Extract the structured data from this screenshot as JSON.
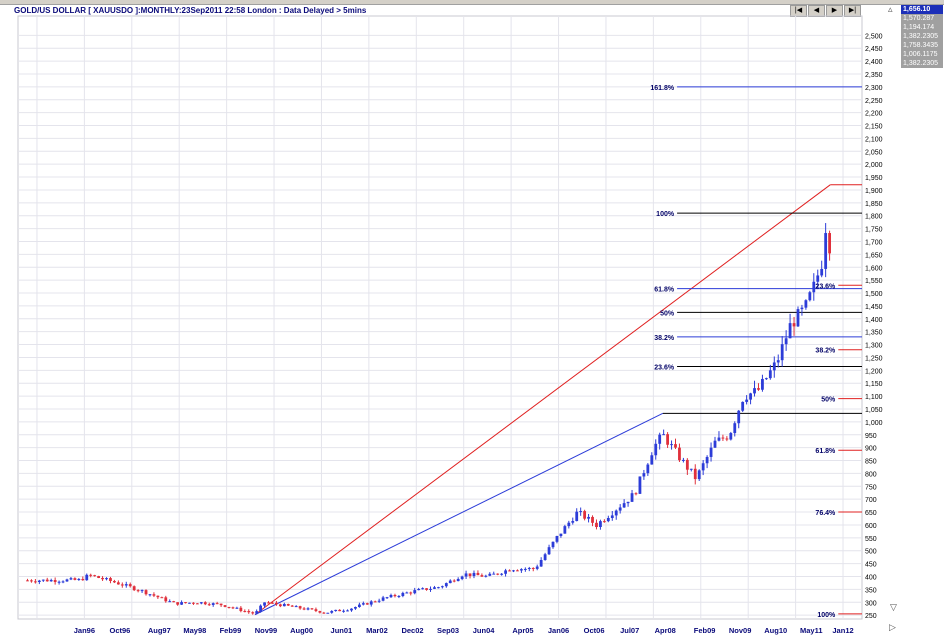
{
  "header": {
    "title": "GOLD/US DOLLAR [ XAUUSDO ]:MONTHLY:23Sep2011 22:58 London : Data Delayed > 5mins"
  },
  "nav": {
    "first": "|◀",
    "prev": "◀",
    "next": "▶",
    "last": "▶|"
  },
  "value_panel": [
    "1,656.10",
    "1,570.287",
    "1,194.174",
    "1,382.2305",
    "1,758.3435",
    "1,006.1175",
    "1,382.2305"
  ],
  "colors": {
    "up": "#2c3cd8",
    "down": "#e0303c",
    "blue_line": "#2c3cd8",
    "red_line": "#e02020",
    "grid": "#e4e4ec",
    "fib_label": "#000066"
  },
  "chart_data": {
    "type": "candlestick",
    "ylim": [
      235,
      2575
    ],
    "xlim": [
      1994.6,
      2012.4
    ],
    "y_ticks": [
      250,
      300,
      350,
      400,
      450,
      500,
      550,
      600,
      650,
      700,
      750,
      800,
      850,
      900,
      950,
      1000,
      1050,
      1100,
      1150,
      1200,
      1250,
      1300,
      1350,
      1400,
      1450,
      1500,
      1550,
      1600,
      1650,
      1700,
      1750,
      1800,
      1850,
      1900,
      1950,
      2000,
      2050,
      2100,
      2150,
      2200,
      2250,
      2300,
      2350,
      2400,
      2450,
      2500
    ],
    "x_labels": [
      "Jan96",
      "Oct96",
      "Aug97",
      "May98",
      "Feb99",
      "Nov99",
      "Aug00",
      "Jun01",
      "Mar02",
      "Dec02",
      "Sep03",
      "Jun04",
      "Apr05",
      "Jan06",
      "Oct06",
      "Jul07",
      "Apr08",
      "Feb09",
      "Nov09",
      "Aug10",
      "May11",
      "Jan12"
    ],
    "x_label_years": [
      1996.0,
      1996.75,
      1997.58,
      1998.33,
      1999.08,
      1999.83,
      2000.58,
      2001.42,
      2002.17,
      2002.92,
      2003.67,
      2004.42,
      2005.25,
      2006.0,
      2006.75,
      2007.5,
      2008.25,
      2009.08,
      2009.83,
      2010.58,
      2011.33,
      2012.0
    ],
    "anchors": [
      [
        1994.8,
        385
      ],
      [
        1995.9,
        386
      ],
      [
        1996.1,
        405
      ],
      [
        1996.6,
        380
      ],
      [
        1997.2,
        345
      ],
      [
        1997.9,
        295
      ],
      [
        1998.4,
        300
      ],
      [
        1998.9,
        290
      ],
      [
        1999.6,
        255
      ],
      [
        1999.8,
        300
      ],
      [
        2000.3,
        285
      ],
      [
        2001.1,
        260
      ],
      [
        2001.6,
        275
      ],
      [
        2002.3,
        315
      ],
      [
        2003.0,
        345
      ],
      [
        2003.5,
        360
      ],
      [
        2004.0,
        410
      ],
      [
        2004.5,
        400
      ],
      [
        2005.0,
        430
      ],
      [
        2005.5,
        430
      ],
      [
        2006.0,
        560
      ],
      [
        2006.4,
        650
      ],
      [
        2006.8,
        600
      ],
      [
        2007.2,
        660
      ],
      [
        2007.6,
        720
      ],
      [
        2008.0,
        900
      ],
      [
        2008.2,
        950
      ],
      [
        2008.6,
        850
      ],
      [
        2008.9,
        780
      ],
      [
        2009.3,
        920
      ],
      [
        2009.6,
        950
      ],
      [
        2009.9,
        1100
      ],
      [
        2010.2,
        1120
      ],
      [
        2010.6,
        1230
      ],
      [
        2010.9,
        1380
      ],
      [
        2011.2,
        1440
      ],
      [
        2011.4,
        1530
      ],
      [
        2011.55,
        1620
      ],
      [
        2011.67,
        1820
      ],
      [
        2011.73,
        1650
      ]
    ],
    "fib_lines": [
      {
        "label": "161.8%",
        "side": "left",
        "y": 2300,
        "color": "#2c3cd8",
        "x1": 2008.5,
        "x2": 2012.4
      },
      {
        "label": "100%",
        "side": "left",
        "y": 1810,
        "color": "#000000",
        "x1": 2008.5,
        "x2": 2012.4
      },
      {
        "label": "61.8%",
        "side": "left",
        "y": 1517,
        "color": "#2c3cd8",
        "x1": 2008.5,
        "x2": 2012.4
      },
      {
        "label": "50%",
        "side": "left",
        "y": 1425,
        "color": "#000000",
        "x1": 2008.5,
        "x2": 2012.4
      },
      {
        "label": "38.2%",
        "side": "left",
        "y": 1330,
        "color": "#2c3cd8",
        "x1": 2008.5,
        "x2": 2012.4
      },
      {
        "label": "23.6%",
        "side": "left",
        "y": 1215,
        "color": "#000000",
        "x1": 2008.5,
        "x2": 2012.4
      },
      {
        "label": "23.6%",
        "side": "right",
        "y": 1530,
        "color": "#e02020",
        "x1": 2011.9,
        "x2": 2012.4
      },
      {
        "label": "38.2%",
        "side": "right",
        "y": 1280,
        "color": "#e02020",
        "x1": 2011.9,
        "x2": 2012.4
      },
      {
        "label": "50%",
        "side": "right",
        "y": 1090,
        "color": "#e02020",
        "x1": 2011.9,
        "x2": 2012.4
      },
      {
        "label": "61.8%",
        "side": "right",
        "y": 890,
        "color": "#e02020",
        "x1": 2011.9,
        "x2": 2012.4
      },
      {
        "label": "76.4%",
        "side": "right",
        "y": 650,
        "color": "#e02020",
        "x1": 2011.9,
        "x2": 2012.4
      },
      {
        "label": "100%",
        "side": "right",
        "y": 255,
        "color": "#e02020",
        "x1": 2011.9,
        "x2": 2012.4
      }
    ],
    "trend_lines": [
      {
        "color": "#e02020",
        "x1": 1999.6,
        "y1": 252,
        "x2": 2011.73,
        "y2": 1920
      },
      {
        "color": "#2c3cd8",
        "x1": 1999.6,
        "y1": 252,
        "x2": 2008.2,
        "y2": 1033
      }
    ],
    "extra_hlines": [
      {
        "color": "#e02020",
        "y": 1920,
        "x1": 2011.73,
        "x2": 2012.4
      },
      {
        "color": "#000000",
        "y": 1033,
        "x1": 2008.2,
        "x2": 2012.4
      }
    ]
  }
}
